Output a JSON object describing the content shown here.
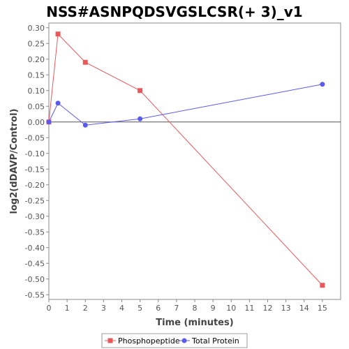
{
  "chart_data": {
    "type": "line",
    "title": "NSS#ASNPQDSVGSLCSR(+ 3)_v1",
    "xlabel": "Time (minutes)",
    "ylabel": "log2(dDAVP/Control)",
    "xlim": [
      0,
      16
    ],
    "ylim": [
      -0.565,
      0.315
    ],
    "x_ticks": [
      0,
      1,
      2,
      3,
      4,
      5,
      6,
      7,
      8,
      9,
      10,
      11,
      12,
      13,
      14,
      15
    ],
    "y_ticks": [
      0.3,
      0.25,
      0.2,
      0.15,
      0.1,
      0.05,
      0.0,
      -0.05,
      -0.1,
      -0.15,
      -0.2,
      -0.25,
      -0.3,
      -0.35,
      -0.4,
      -0.45,
      -0.5,
      -0.55
    ],
    "y_tick_labels": [
      "0.30",
      "0.25",
      "0.20",
      "0.15",
      "0.10",
      "0.05",
      "0.00",
      "-0.05",
      "-0.10",
      "-0.15",
      "-0.20",
      "-0.25",
      "-0.30",
      "-0.35",
      "-0.40",
      "-0.45",
      "-0.50",
      "-0.55"
    ],
    "zero_line": true,
    "grid": false,
    "legend_position": "bottom",
    "series": [
      {
        "name": "Phosphopeptide",
        "color": "#e8585a",
        "marker": "square",
        "x": [
          0,
          0.5,
          2,
          5,
          15
        ],
        "y": [
          0.0,
          0.28,
          0.19,
          0.1,
          -0.52
        ]
      },
      {
        "name": "Total Protein",
        "color": "#5a5aee",
        "marker": "circle",
        "x": [
          0,
          0.5,
          2,
          5,
          15
        ],
        "y": [
          0.0,
          0.06,
          -0.01,
          0.01,
          0.12
        ]
      }
    ]
  }
}
